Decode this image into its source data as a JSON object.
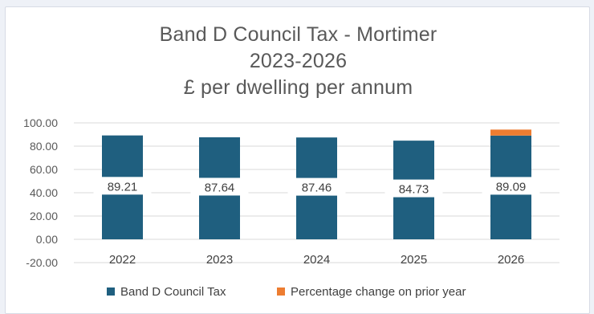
{
  "chart_data": {
    "type": "bar",
    "title_lines": [
      "Band D Council Tax - Mortimer",
      "2023-2026",
      "£ per dwelling per annum"
    ],
    "categories": [
      "2022",
      "2023",
      "2024",
      "2025",
      "2026"
    ],
    "series": [
      {
        "name": "Band D Council Tax",
        "values": [
          89.21,
          87.64,
          87.46,
          84.73,
          89.09
        ],
        "labels": [
          "89.21",
          "87.64",
          "87.46",
          "84.73",
          "89.09"
        ],
        "color": "#1f5f7f"
      },
      {
        "name": "Percentage change on prior year",
        "values": [
          null,
          -1.76,
          -0.21,
          -3.12,
          5.15
        ],
        "color": "#ed7d31"
      }
    ],
    "stacked": true,
    "ylim": [
      -20,
      100
    ],
    "yticks": [
      "100.00",
      "80.00",
      "60.00",
      "40.00",
      "20.00",
      "0.00",
      "-20.00"
    ],
    "grid": true,
    "legend_position": "bottom",
    "xlabel": "",
    "ylabel": ""
  }
}
